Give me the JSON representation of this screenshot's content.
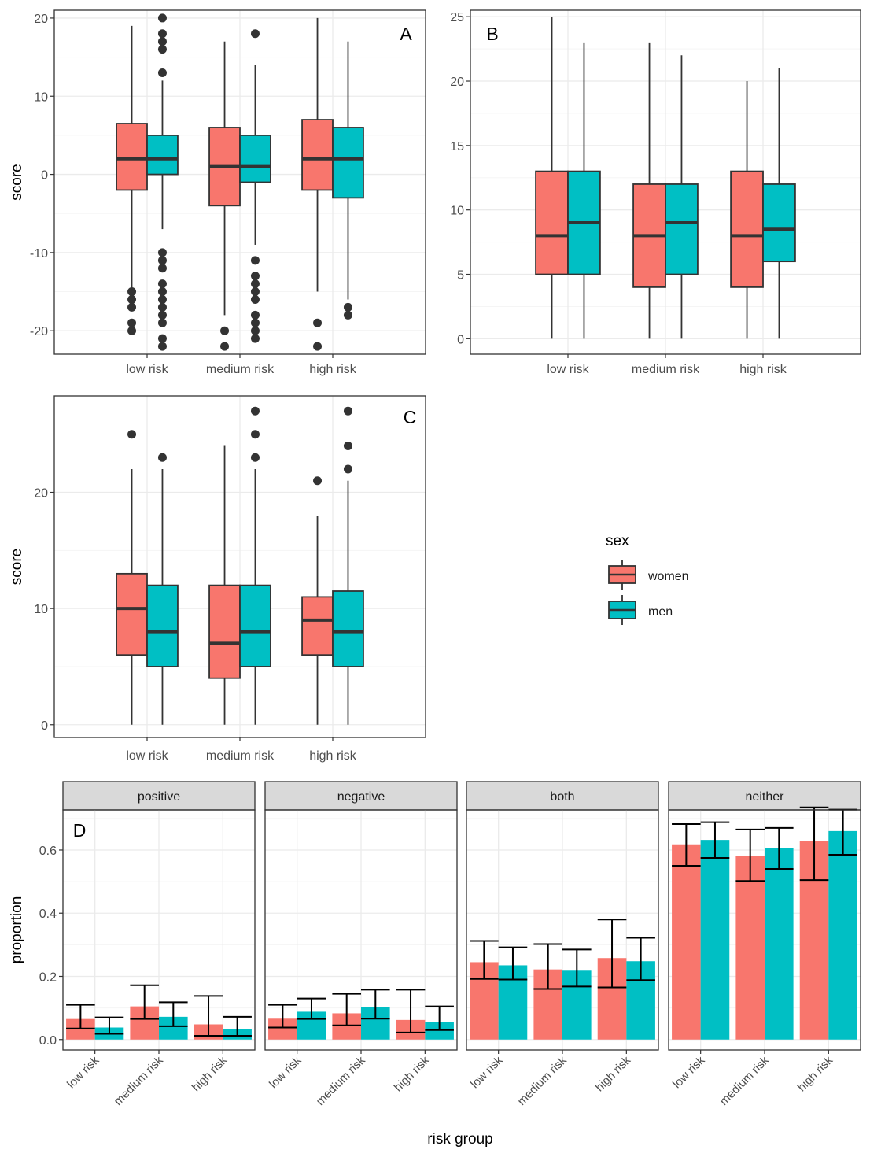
{
  "colors": {
    "women": "#F8766D",
    "men": "#00BFC4",
    "stroke": "#333333",
    "grid": "#EBEBEB",
    "grid_minor": "#F5F5F5",
    "strip": "#D9D9D9"
  },
  "legend": {
    "title": "sex",
    "entries": [
      {
        "label": "women",
        "key": "women"
      },
      {
        "label": "men",
        "key": "men"
      }
    ]
  },
  "chart_data": [
    {
      "type": "boxplot",
      "panel_label": "A",
      "ylabel": "score",
      "xlabel": "",
      "ylim": [
        -23,
        21
      ],
      "yticks": [
        -20,
        -10,
        0,
        10,
        20
      ],
      "categories": [
        "low risk",
        "medium risk",
        "high risk"
      ],
      "series": [
        {
          "key": "women",
          "boxes": [
            {
              "min": -15,
              "q1": -2,
              "median": 2,
              "q3": 6.5,
              "max": 19,
              "outliers": [
                -15,
                -16,
                -17,
                -19,
                -20
              ]
            },
            {
              "min": -18,
              "q1": -4,
              "median": 1,
              "q3": 6,
              "max": 17,
              "outliers": [
                -20,
                -22
              ]
            },
            {
              "min": -15,
              "q1": -2,
              "median": 2,
              "q3": 7,
              "max": 20,
              "outliers": [
                -19,
                -22
              ]
            }
          ]
        },
        {
          "key": "men",
          "boxes": [
            {
              "min": -7,
              "q1": 0,
              "median": 2,
              "q3": 5,
              "max": 12,
              "outliers": [
                13,
                16,
                17,
                18,
                20,
                -10,
                -11,
                -12,
                -14,
                -15,
                -16,
                -17,
                -18,
                -19,
                -21,
                -22
              ]
            },
            {
              "min": -9,
              "q1": -1,
              "median": 1,
              "q3": 5,
              "max": 14,
              "outliers": [
                18,
                -11,
                -13,
                -14,
                -15,
                -16,
                -18,
                -19,
                -20,
                -21
              ]
            },
            {
              "min": -16,
              "q1": -3,
              "median": 2,
              "q3": 6,
              "max": 17,
              "outliers": [
                -17,
                -18
              ]
            }
          ]
        }
      ]
    },
    {
      "type": "boxplot",
      "panel_label": "B",
      "ylabel": "",
      "xlabel": "",
      "ylim": [
        -1.2,
        25.5
      ],
      "yticks": [
        0,
        5,
        10,
        15,
        20,
        25
      ],
      "categories": [
        "low risk",
        "medium risk",
        "high risk"
      ],
      "series": [
        {
          "key": "women",
          "boxes": [
            {
              "min": 0,
              "q1": 5,
              "median": 8,
              "q3": 13,
              "max": 25,
              "outliers": []
            },
            {
              "min": 0,
              "q1": 4,
              "median": 8,
              "q3": 12,
              "max": 23,
              "outliers": []
            },
            {
              "min": 0,
              "q1": 4,
              "median": 8,
              "q3": 13,
              "max": 20,
              "outliers": []
            }
          ]
        },
        {
          "key": "men",
          "boxes": [
            {
              "min": 0,
              "q1": 5,
              "median": 9,
              "q3": 13,
              "max": 23,
              "outliers": []
            },
            {
              "min": 0,
              "q1": 5,
              "median": 9,
              "q3": 12,
              "max": 22,
              "outliers": []
            },
            {
              "min": 0,
              "q1": 6,
              "median": 8.5,
              "q3": 12,
              "max": 21,
              "outliers": []
            }
          ]
        }
      ]
    },
    {
      "type": "boxplot",
      "panel_label": "C",
      "ylabel": "score",
      "xlabel": "",
      "ylim": [
        -1.1,
        28.3
      ],
      "yticks": [
        0,
        10,
        20
      ],
      "categories": [
        "low risk",
        "medium risk",
        "high risk"
      ],
      "series": [
        {
          "key": "women",
          "boxes": [
            {
              "min": 0,
              "q1": 6,
              "median": 10,
              "q3": 13,
              "max": 22,
              "outliers": [
                25
              ]
            },
            {
              "min": 0,
              "q1": 4,
              "median": 7,
              "q3": 12,
              "max": 24,
              "outliers": []
            },
            {
              "min": 0,
              "q1": 6,
              "median": 9,
              "q3": 11,
              "max": 18,
              "outliers": [
                21
              ]
            }
          ]
        },
        {
          "key": "men",
          "boxes": [
            {
              "min": 0,
              "q1": 5,
              "median": 8,
              "q3": 12,
              "max": 22,
              "outliers": [
                23
              ]
            },
            {
              "min": 0,
              "q1": 5,
              "median": 8,
              "q3": 12,
              "max": 22,
              "outliers": [
                23,
                25,
                27
              ]
            },
            {
              "min": 0,
              "q1": 5,
              "median": 8,
              "q3": 11.5,
              "max": 21,
              "outliers": [
                22,
                24,
                27
              ]
            }
          ]
        }
      ]
    },
    {
      "type": "bar",
      "panel_label": "D",
      "ylabel": "proportion",
      "xlabel": "risk group",
      "ylim": [
        -0.033,
        0.727
      ],
      "yticks": [
        0.0,
        0.2,
        0.4,
        0.6
      ],
      "ytick_labels": [
        "0.0",
        "0.2",
        "0.4",
        "0.6"
      ],
      "categories": [
        "low risk",
        "medium risk",
        "high risk"
      ],
      "facets": [
        {
          "title": "positive",
          "series": [
            {
              "key": "women",
              "values": [
                0.065,
                0.105,
                0.048
              ],
              "lower": [
                0.035,
                0.065,
                0.012
              ],
              "upper": [
                0.11,
                0.172,
                0.138
              ]
            },
            {
              "key": "men",
              "values": [
                0.038,
                0.072,
                0.032
              ],
              "lower": [
                0.018,
                0.042,
                0.012
              ],
              "upper": [
                0.07,
                0.118,
                0.072
              ]
            }
          ]
        },
        {
          "title": "negative",
          "series": [
            {
              "key": "women",
              "values": [
                0.066,
                0.083,
                0.062
              ],
              "lower": [
                0.038,
                0.045,
                0.022
              ],
              "upper": [
                0.11,
                0.145,
                0.158
              ]
            },
            {
              "key": "men",
              "values": [
                0.088,
                0.102,
                0.055
              ],
              "lower": [
                0.065,
                0.066,
                0.03
              ],
              "upper": [
                0.13,
                0.158,
                0.105
              ]
            }
          ]
        },
        {
          "title": "both",
          "series": [
            {
              "key": "women",
              "values": [
                0.245,
                0.222,
                0.258
              ],
              "lower": [
                0.192,
                0.16,
                0.165
              ],
              "upper": [
                0.312,
                0.302,
                0.38
              ]
            },
            {
              "key": "men",
              "values": [
                0.235,
                0.218,
                0.248
              ],
              "lower": [
                0.19,
                0.168,
                0.188
              ],
              "upper": [
                0.292,
                0.285,
                0.322
              ]
            }
          ]
        },
        {
          "title": "neither",
          "series": [
            {
              "key": "women",
              "values": [
                0.618,
                0.582,
                0.628
              ],
              "lower": [
                0.55,
                0.502,
                0.505
              ],
              "upper": [
                0.682,
                0.665,
                0.735
              ]
            },
            {
              "key": "men",
              "values": [
                0.632,
                0.605,
                0.66
              ],
              "lower": [
                0.575,
                0.54,
                0.585
              ],
              "upper": [
                0.688,
                0.67,
                0.728
              ]
            }
          ]
        }
      ]
    }
  ]
}
